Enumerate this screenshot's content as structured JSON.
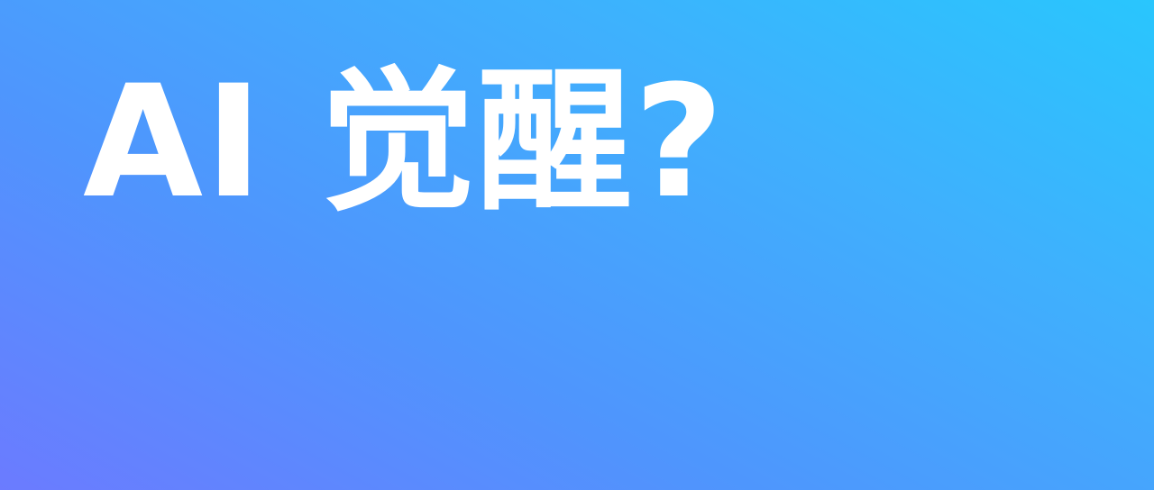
{
  "headline": {
    "text": "AI 觉醒?"
  },
  "colors": {
    "gradient_start": "#6b7bff",
    "gradient_mid_1": "#4f95fd",
    "gradient_mid_2": "#3fb0fd",
    "gradient_end": "#29c6fd",
    "text": "#ffffff"
  }
}
